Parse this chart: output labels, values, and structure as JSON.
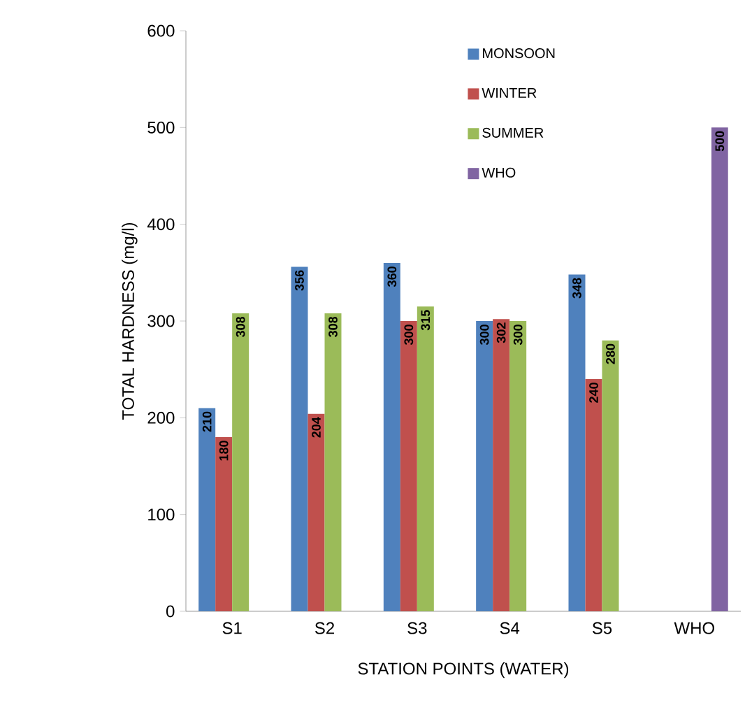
{
  "chart_data": {
    "type": "bar",
    "xlabel": "STATION POINTS (WATER)",
    "ylabel": "TOTAL HARDNESS (mg/l)",
    "categories": [
      "S1",
      "S2",
      "S3",
      "S4",
      "S5",
      "WHO"
    ],
    "series": [
      {
        "name": "MONSOON",
        "color": "#4f81bd",
        "values": [
          210,
          356,
          360,
          300,
          348,
          null
        ]
      },
      {
        "name": "WINTER",
        "color": "#c0504d",
        "values": [
          180,
          204,
          300,
          302,
          240,
          null
        ]
      },
      {
        "name": "SUMMER",
        "color": "#9bbb59",
        "values": [
          308,
          308,
          315,
          300,
          280,
          null
        ]
      },
      {
        "name": "WHO",
        "color": "#8064a2",
        "values": [
          null,
          null,
          null,
          null,
          null,
          500
        ]
      }
    ],
    "ylim": [
      0,
      600
    ],
    "yticks": [
      0,
      100,
      200,
      300,
      400,
      500,
      600
    ],
    "data_labels": true,
    "legend": "top",
    "grid": false
  }
}
